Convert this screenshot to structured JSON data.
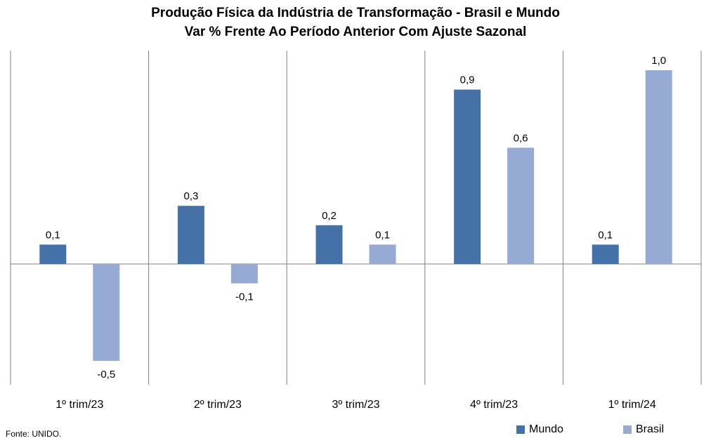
{
  "title": "Produção Física da Indústria de Transformação - Brasil e Mundo",
  "subtitle": "Var % Frente Ao Período Anterior Com Ajuste Sazonal",
  "source": "Fonte: UNIDO.",
  "colors": {
    "mundo": "#4472a8",
    "brasil": "#95abd4",
    "axis": "#808080"
  },
  "chart_data": {
    "type": "bar",
    "title": "Produção Física da Indústria de Transformação - Brasil e Mundo",
    "subtitle": "Var % Frente Ao Período Anterior Com Ajuste Sazonal",
    "categories": [
      "1º trim/23",
      "2º trim/23",
      "3º trim/23",
      "4º trim/23",
      "1º trim/24"
    ],
    "series": [
      {
        "name": "Mundo",
        "values": [
          0.1,
          0.3,
          0.2,
          0.9,
          0.1
        ],
        "labels": [
          "0,1",
          "0,3",
          "0,2",
          "0,9",
          "0,1"
        ]
      },
      {
        "name": "Brasil",
        "values": [
          -0.5,
          -0.1,
          0.1,
          0.6,
          1.0
        ],
        "labels": [
          "-0,5",
          "-0,1",
          "0,1",
          "0,6",
          "1,0"
        ]
      }
    ],
    "ylim": [
      -0.65,
      1.1
    ],
    "grid": false,
    "legend": "bottom-right"
  }
}
